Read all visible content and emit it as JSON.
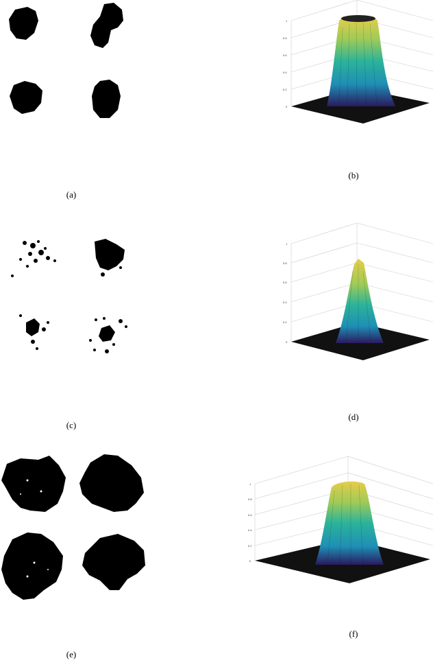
{
  "captions": [
    "(a)",
    "(b)",
    "(c)",
    "(d)",
    "(e)",
    "(f)"
  ],
  "z_tick_labels": [
    "0",
    "0.2",
    "0.4",
    "0.6",
    "0.8",
    "1"
  ],
  "colors": {
    "blob": "#000000",
    "floor": "#111111",
    "grid": "#cccccc",
    "colormap": [
      "#2a1a5e",
      "#2f4aa0",
      "#1f8fb5",
      "#2bb39a",
      "#9fcb57",
      "#e6cc4a"
    ]
  },
  "plots": [
    {
      "id": "b",
      "shape": "flat-top",
      "peak_z": 1.0
    },
    {
      "id": "d",
      "shape": "gaussian",
      "peak_z": 0.85
    },
    {
      "id": "f",
      "shape": "flat-top",
      "peak_z": 0.95
    }
  ]
}
